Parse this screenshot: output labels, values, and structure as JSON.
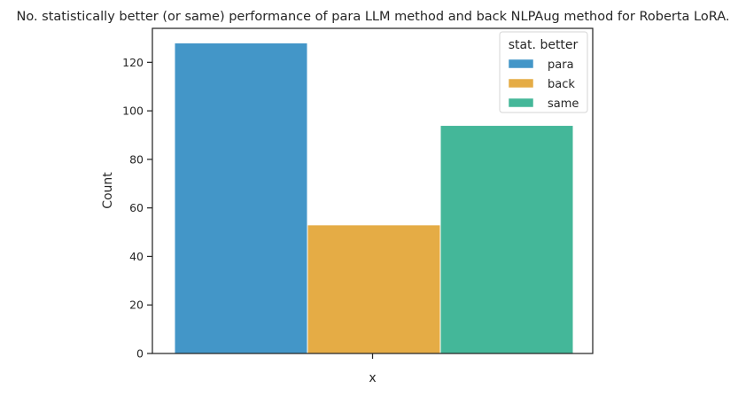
{
  "chart_data": {
    "type": "bar",
    "title": "No. statistically better (or same) performance of para LLM method and back NLPAug method for Roberta LoRA.",
    "xlabel": "x",
    "ylabel": "Count",
    "categories": [
      "x"
    ],
    "series": [
      {
        "name": "para",
        "values": [
          128
        ],
        "color": "#4396c8"
      },
      {
        "name": "back",
        "values": [
          53
        ],
        "color": "#e5ac45"
      },
      {
        "name": "same",
        "values": [
          94
        ],
        "color": "#44b799"
      }
    ],
    "ylim": [
      0,
      134
    ],
    "yticks": [
      0,
      20,
      40,
      60,
      80,
      100,
      120
    ],
    "grid": false,
    "legend": {
      "title": "stat. better",
      "placement": "top-right"
    }
  }
}
